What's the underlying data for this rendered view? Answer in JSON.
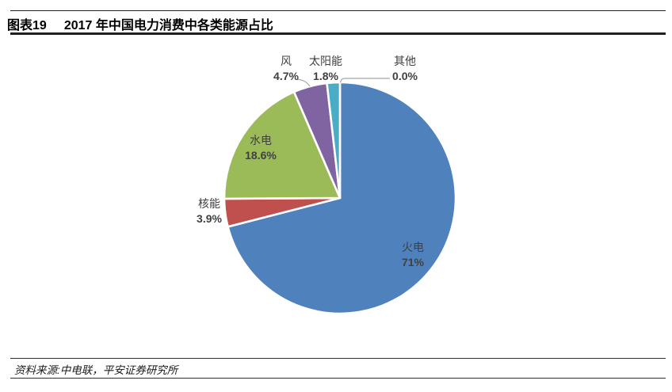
{
  "header": {
    "figure_label": "图表19",
    "title": "2017 年中国电力消费中各类能源占比"
  },
  "footer": {
    "source": "资料来源:中电联，平安证券研究所"
  },
  "chart_data": {
    "type": "pie",
    "title": "2017 年中国电力消费中各类能源占比",
    "unit": "%",
    "start_angle": "12-oclock",
    "direction": "clockwise",
    "total": 100,
    "slice_border_color": "#ffffff",
    "leader_line_color": "#a6a6a6",
    "label_color": "#404040",
    "slices": [
      {
        "key": "thermal",
        "name": "火电",
        "value": 71,
        "label": "71%",
        "color": "#4F81BD",
        "label_placement": "inside"
      },
      {
        "key": "nuclear",
        "name": "核能",
        "value": 3.9,
        "label": "3.9%",
        "color": "#C0504D",
        "label_placement": "outside-left"
      },
      {
        "key": "hydro",
        "name": "水电",
        "value": 18.6,
        "label": "18.6%",
        "color": "#9BBB59",
        "label_placement": "inside"
      },
      {
        "key": "wind",
        "name": "风",
        "value": 4.7,
        "label": "4.7%",
        "color": "#8064A2",
        "label_placement": "outside-top"
      },
      {
        "key": "solar",
        "name": "太阳能",
        "value": 1.8,
        "label": "1.8%",
        "color": "#4BACC6",
        "label_placement": "outside-top"
      },
      {
        "key": "other",
        "name": "其他",
        "value": 0.0,
        "label": "0.0%",
        "color": "#A6A6A6",
        "label_placement": "outside-top"
      }
    ]
  }
}
